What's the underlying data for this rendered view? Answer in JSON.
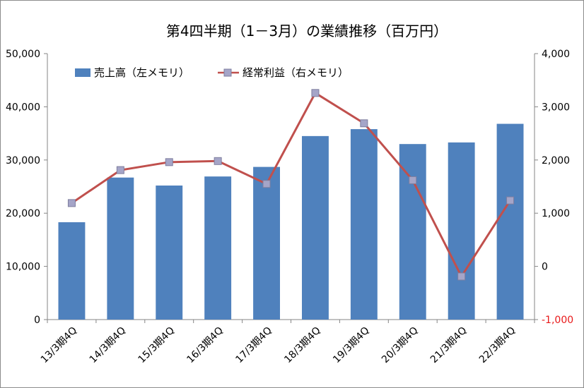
{
  "chart_data": {
    "type": "bar",
    "title": "第4四半期（1－3月）の業績推移（百万円）",
    "categories": [
      "13/3期4Q",
      "14/3期4Q",
      "15/3期4Q",
      "16/3期4Q",
      "17/3期4Q",
      "18/3期4Q",
      "19/3期4Q",
      "20/3期4Q",
      "21/3期4Q",
      "22/3期4Q"
    ],
    "series": [
      {
        "name": "売上高（左メモリ）",
        "type": "bar",
        "axis": "left",
        "color": "#4f81bd",
        "values": [
          18300,
          26700,
          25200,
          26900,
          28700,
          34500,
          35800,
          33000,
          33300,
          36800
        ]
      },
      {
        "name": "経常利益（右メモリ）",
        "type": "line",
        "axis": "right",
        "color": "#c0504d",
        "marker_color": "#a5a5c8",
        "values": [
          1190,
          1810,
          1960,
          1980,
          1550,
          3260,
          2690,
          1620,
          -190,
          1240
        ]
      }
    ],
    "y_left": {
      "ylim": [
        0,
        50000
      ],
      "ticks": [
        "0",
        "10,000",
        "20,000",
        "30,000",
        "40,000",
        "50,000"
      ]
    },
    "y_right": {
      "ylim": [
        -1000,
        4000
      ],
      "ticks": [
        "-1,000",
        "0",
        "1,000",
        "2,000",
        "3,000",
        "4,000"
      ],
      "negative_tick_color": "#e8191a"
    },
    "grid": false,
    "legend_position": "top-left"
  }
}
